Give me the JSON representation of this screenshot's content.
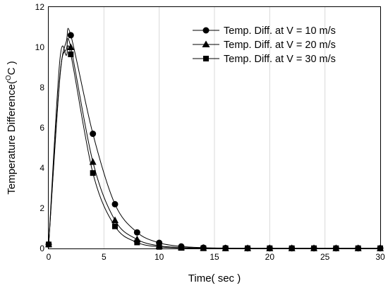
{
  "chart_data": {
    "type": "line",
    "xlabel": "Time( sec )",
    "ylabel": "Temperature Difference(",
    "ylabel_sup": "O",
    "ylabel_unit": "C )",
    "xlim": [
      0,
      30
    ],
    "ylim": [
      0,
      12
    ],
    "xticks": [
      0,
      5,
      10,
      15,
      20,
      25,
      30
    ],
    "yticks": [
      0,
      2,
      4,
      6,
      8,
      10,
      12
    ],
    "grid": "vertical",
    "legend_position": "top-right",
    "x": [
      0,
      2,
      4,
      6,
      8,
      10,
      12,
      14,
      16,
      18,
      20,
      22,
      24,
      26,
      28,
      30
    ],
    "series": [
      {
        "name": "Temp. Diff. at V = 10 m/s",
        "marker": "circle",
        "curve_start": [
          0.2,
          8.4,
          10.3
        ],
        "values": [
          0.2,
          10.6,
          5.7,
          2.2,
          0.8,
          0.28,
          0.1,
          0.04,
          0.02,
          0.01,
          0.01,
          0.01,
          0.01,
          0.01,
          0.01,
          0.01
        ]
      },
      {
        "name": "Temp. Diff. at V = 20 m/s",
        "marker": "triangle",
        "curve_start": [
          0.2,
          8.5,
          9.9
        ],
        "values": [
          0.2,
          10.0,
          4.3,
          1.4,
          0.45,
          0.13,
          0.05,
          0.02,
          0.01,
          0.01,
          0.01,
          0.01,
          0.01,
          0.01,
          0.01,
          0.01
        ]
      },
      {
        "name": "Temp. Diff. at V = 30 m/s",
        "marker": "square",
        "curve_start": [
          0.2,
          9.3,
          9.6
        ],
        "values": [
          0.2,
          9.65,
          3.75,
          1.1,
          0.3,
          0.08,
          0.03,
          0.01,
          0.01,
          0.01,
          0.01,
          0.01,
          0.01,
          0.01,
          0.01,
          0.01
        ]
      }
    ],
    "line_color": "#000000",
    "grid_color": "#d9d9d9"
  }
}
